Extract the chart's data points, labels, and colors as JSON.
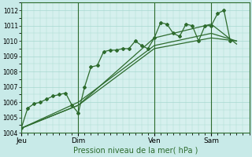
{
  "background_color": "#c8eae8",
  "plot_bg_color": "#d6f0ee",
  "grid_color": "#a8d8d0",
  "line_color": "#2d6b2d",
  "ylabel_text": "Pression niveau de la mer( hPa )",
  "ylim": [
    1004,
    1012.5
  ],
  "yticks": [
    1004,
    1005,
    1006,
    1007,
    1008,
    1009,
    1010,
    1011,
    1012
  ],
  "day_labels": [
    "Jeu",
    "Dim",
    "Ven",
    "Sam"
  ],
  "day_positions": [
    0,
    9,
    21,
    30
  ],
  "xlim": [
    0,
    36
  ],
  "series1_x": [
    0,
    1,
    2,
    3,
    4,
    5,
    6,
    7,
    8,
    9,
    10,
    11,
    12,
    13,
    14,
    15,
    16,
    17,
    18,
    19,
    20,
    21,
    22,
    23,
    24,
    25,
    26,
    27,
    28,
    29,
    30,
    31,
    32,
    33
  ],
  "series1_y": [
    1004.3,
    1005.6,
    1005.9,
    1006.0,
    1006.2,
    1006.4,
    1006.5,
    1006.6,
    1005.8,
    1005.3,
    1007.0,
    1008.3,
    1008.4,
    1009.3,
    1009.4,
    1009.4,
    1009.5,
    1009.5,
    1010.0,
    1009.7,
    1009.5,
    1010.2,
    1011.2,
    1011.1,
    1010.5,
    1010.3,
    1011.1,
    1011.0,
    1010.0,
    1011.0,
    1011.0,
    1011.8,
    1012.0,
    1010.0
  ],
  "series2_x": [
    0,
    9,
    21,
    30,
    34
  ],
  "series2_y": [
    1004.3,
    1005.8,
    1009.5,
    1010.2,
    1010.0
  ],
  "series3_x": [
    0,
    9,
    21,
    30,
    34
  ],
  "series3_y": [
    1004.3,
    1006.0,
    1009.7,
    1010.5,
    1010.0
  ],
  "series4_x": [
    0,
    9,
    21,
    30,
    34
  ],
  "series4_y": [
    1004.3,
    1005.8,
    1010.2,
    1011.1,
    1009.8
  ]
}
